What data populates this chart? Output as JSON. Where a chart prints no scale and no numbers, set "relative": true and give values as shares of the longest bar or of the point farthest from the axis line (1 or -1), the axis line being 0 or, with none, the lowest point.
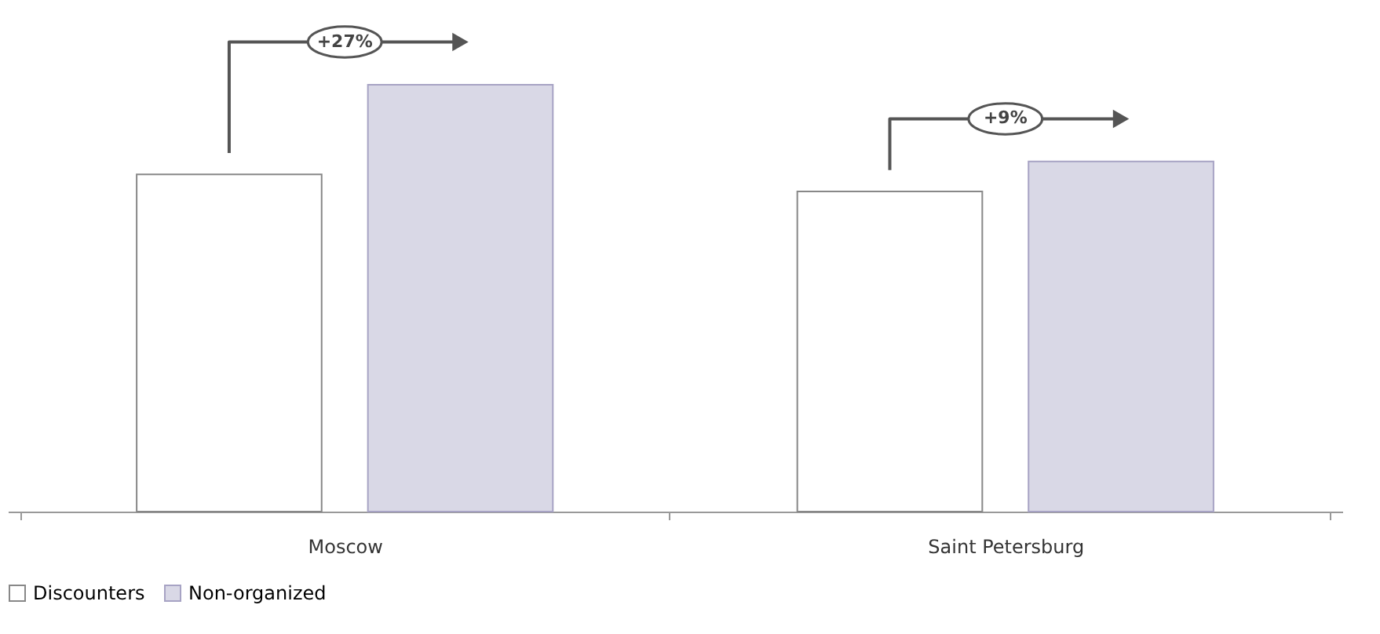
{
  "chart_data": {
    "type": "bar",
    "relative": true,
    "categories": [
      "Moscow",
      "Saint Petersburg"
    ],
    "series": [
      {
        "name": "Discounters",
        "color": "#ffffff",
        "values": [
          0.79,
          0.75
        ]
      },
      {
        "name": "Non-organized",
        "color": "#d9d8e6",
        "values": [
          1,
          0.82
        ]
      }
    ],
    "annotations": [
      "+27%",
      "+9%"
    ],
    "legend": "bottom",
    "grid": false
  }
}
